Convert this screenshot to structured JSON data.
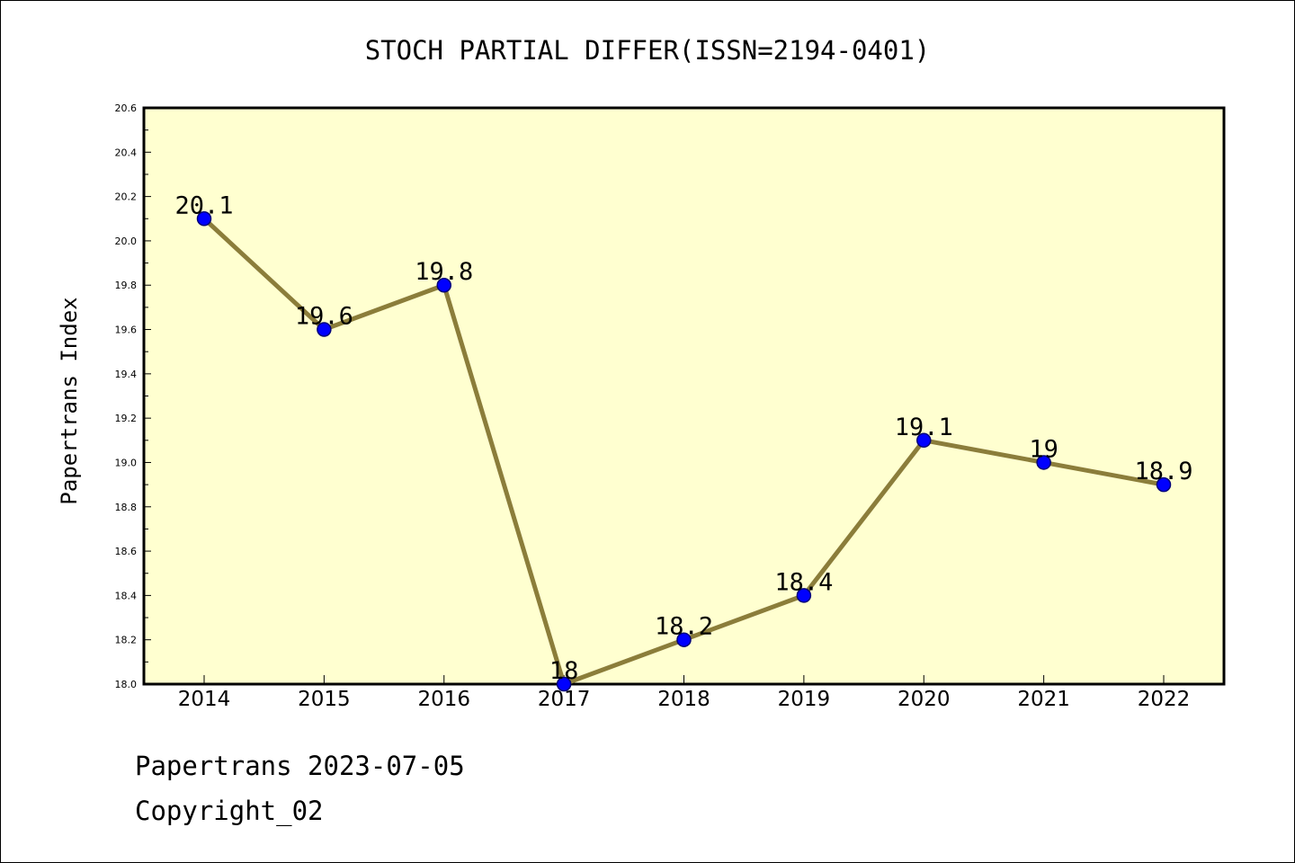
{
  "chart_data": {
    "type": "line",
    "title": "STOCH PARTIAL DIFFER(ISSN=2194-0401)",
    "xlabel": "",
    "ylabel": "Papertrans Index",
    "categories": [
      "2014",
      "2015",
      "2016",
      "2017",
      "2018",
      "2019",
      "2020",
      "2021",
      "2022"
    ],
    "values": [
      20.1,
      19.6,
      19.8,
      18.0,
      18.2,
      18.4,
      19.1,
      19.0,
      18.9
    ],
    "data_labels": [
      "20.1",
      "19.6",
      "19.8",
      "18",
      "18.2",
      "18.4",
      "19.1",
      "19",
      "18.9"
    ],
    "ylim": [
      18.0,
      20.6
    ],
    "yticks": [
      "18.0",
      "18.2",
      "18.4",
      "18.6",
      "18.8",
      "19.0",
      "19.2",
      "19.4",
      "19.6",
      "19.8",
      "20.0",
      "20.2",
      "20.4",
      "20.6"
    ],
    "grid": false,
    "colors": {
      "plot_background": "#ffffd0",
      "line": "#8b7d3a",
      "marker_fill": "#0000ff",
      "marker_edge": "#00007a"
    }
  },
  "footer": {
    "line1": "Papertrans 2023-07-05",
    "line2": "Copyright_02"
  }
}
